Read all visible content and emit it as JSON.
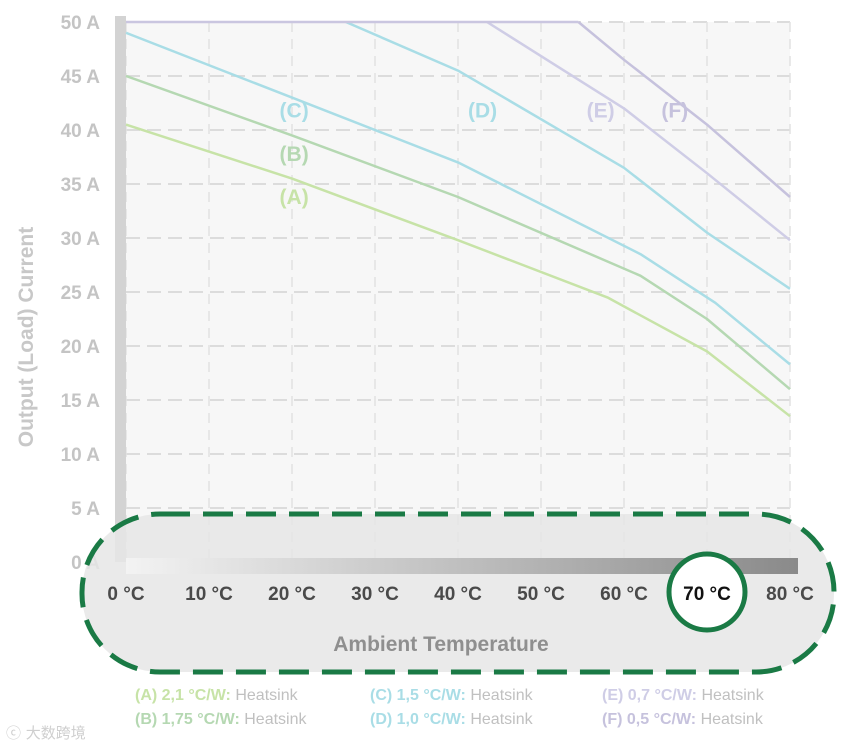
{
  "chart_data": {
    "type": "line",
    "ylabel": "Output (Load) Current",
    "xlabel": "Ambient Temperature",
    "x": [
      0,
      10,
      20,
      30,
      40,
      50,
      60,
      70,
      80
    ],
    "x_tick_labels": [
      "0 °C",
      "10 °C",
      "20 °C",
      "30 °C",
      "40 °C",
      "50 °C",
      "60 °C",
      "70 °C",
      "80 °C"
    ],
    "highlighted_tick": "70 °C",
    "y_tick_labels": [
      "0 A",
      "5 A",
      "10 A",
      "15 A",
      "20 A",
      "25 A",
      "30 A",
      "35 A",
      "40 A",
      "45 A",
      "50 A"
    ],
    "xlim": [
      0,
      80
    ],
    "ylim": [
      0,
      50
    ],
    "grid": true,
    "series": [
      {
        "name": "(A)",
        "color": "#c7e3a7",
        "x": [
          0,
          20,
          40,
          58,
          70,
          80
        ],
        "y": [
          40.5,
          35.5,
          29.8,
          24.5,
          19.5,
          13.5
        ]
      },
      {
        "name": "(B)",
        "color": "#b5d8b2",
        "x": [
          0,
          20,
          40,
          62,
          70,
          80
        ],
        "y": [
          45,
          39.5,
          33.8,
          26.5,
          22.5,
          16
        ]
      },
      {
        "name": "(C)",
        "color": "#a9dde6",
        "x": [
          0,
          20,
          40,
          62,
          71,
          80
        ],
        "y": [
          49,
          43,
          37,
          28.5,
          24,
          18.3
        ]
      },
      {
        "name": "(D)",
        "color": "#a9dde6",
        "x": [
          26.5,
          40,
          60,
          70,
          80
        ],
        "y": [
          50,
          45.5,
          36.5,
          30.5,
          25.3
        ]
      },
      {
        "name": "(E)",
        "color": "#cfcde6",
        "x": [
          43.5,
          60,
          70,
          80
        ],
        "y": [
          50,
          42,
          36,
          29.8
        ]
      },
      {
        "name": "(F)",
        "color": "#c6c2dd",
        "x": [
          54.5,
          60,
          70,
          80
        ],
        "y": [
          50,
          46.5,
          40.5,
          33.8
        ]
      }
    ],
    "curve_labels": [
      {
        "text": "(A)",
        "color": "#c7e3a7",
        "x": 18.5,
        "y": 33.8
      },
      {
        "text": "(B)",
        "color": "#b5d8b2",
        "x": 18.5,
        "y": 37.8
      },
      {
        "text": "(C)",
        "color": "#a9dde6",
        "x": 18.5,
        "y": 41.8
      },
      {
        "text": "(D)",
        "color": "#a9dde6",
        "x": 41.2,
        "y": 41.8
      },
      {
        "text": "(E)",
        "color": "#cfcde6",
        "x": 55.5,
        "y": 41.8
      },
      {
        "text": "(F)",
        "color": "#c6c2dd",
        "x": 64.5,
        "y": 41.8
      }
    ],
    "legend": [
      {
        "code": "(A) 2,1 °C/W:",
        "desc": "Heatsink",
        "color": "#c7e3a7"
      },
      {
        "code": "(B) 1,75 °C/W:",
        "desc": "Heatsink",
        "color": "#b5d8b2"
      },
      {
        "code": "(C) 1,5 °C/W:",
        "desc": "Heatsink",
        "color": "#a9dde6"
      },
      {
        "code": "(D) 1,0 °C/W:",
        "desc": "Heatsink",
        "color": "#a9dde6"
      },
      {
        "code": "(E) 0,7 °C/W:",
        "desc": "Heatsink",
        "color": "#cfcde6"
      },
      {
        "code": "(F) 0,5 °C/W:",
        "desc": "Heatsink",
        "color": "#c6c2dd"
      }
    ],
    "highlight_color": "#1a7a45"
  },
  "watermark": "大数跨境"
}
